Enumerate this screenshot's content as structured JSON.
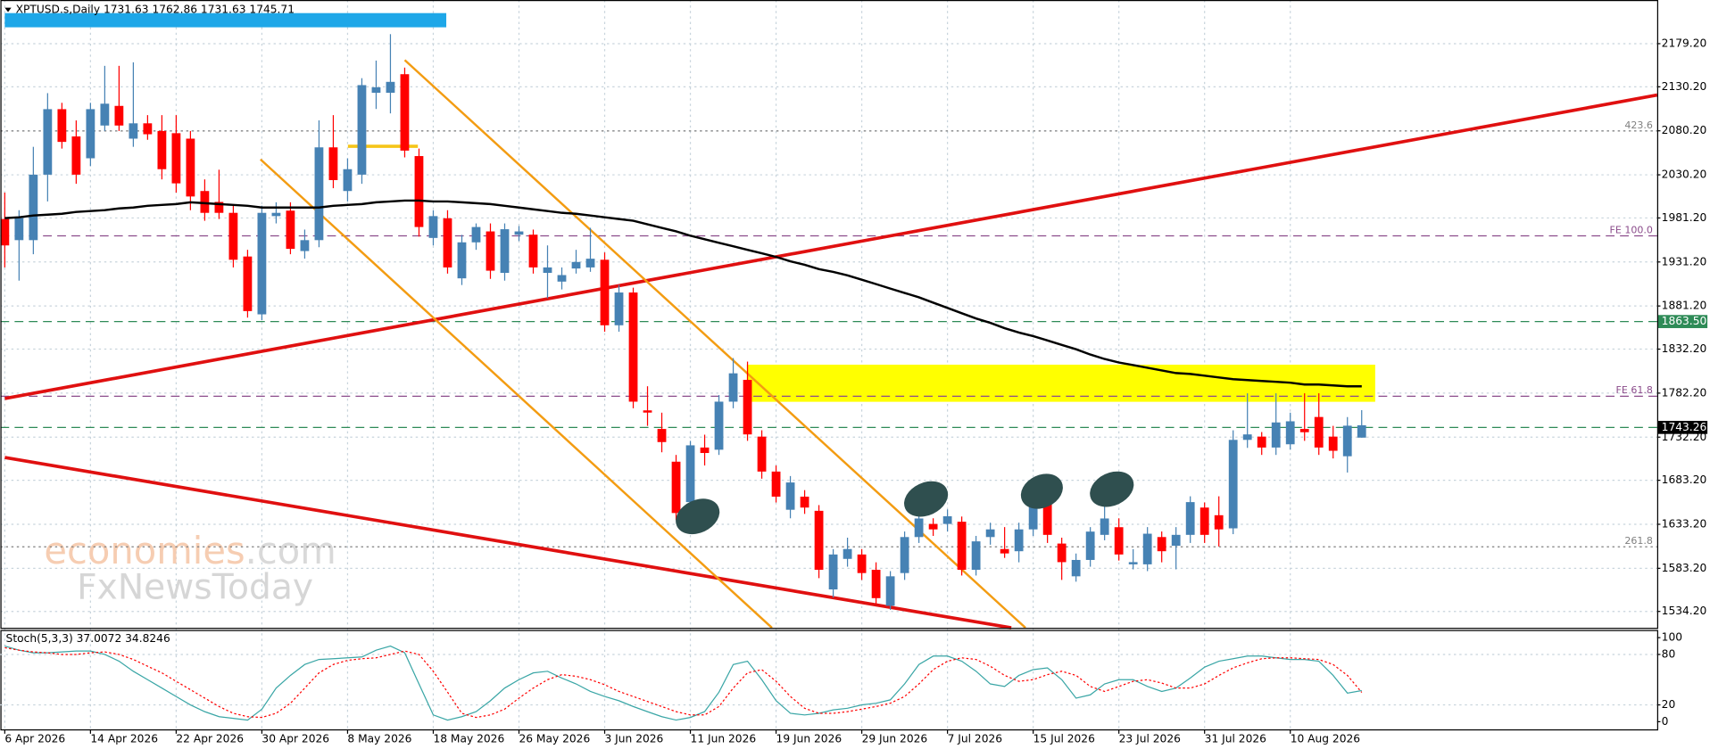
{
  "chart_data": {
    "type": "candlestick",
    "title": "XPTUSD.s,Daily  1731.63 1762.86 1731.63 1745.71",
    "categories": [
      "6 Apr 2026",
      null,
      null,
      null,
      null,
      null,
      "14 Apr 2026",
      null,
      null,
      null,
      null,
      null,
      "22 Apr 2026",
      null,
      null,
      null,
      null,
      null,
      "30 Apr 2026",
      null,
      null,
      null,
      null,
      null,
      "8 May 2026",
      null,
      null,
      null,
      null,
      null,
      "18 May 2026",
      null,
      null,
      null,
      null,
      null,
      "26 May 2026",
      null,
      null,
      null,
      null,
      null,
      "3 Jun 2026",
      null,
      null,
      null,
      null,
      null,
      "11 Jun 2026",
      null,
      null,
      null,
      null,
      null,
      "19 Jun 2026",
      null,
      null,
      null,
      null,
      null,
      "29 Jun 2026",
      null,
      null,
      null,
      null,
      null,
      "7 Jul 2026",
      null,
      null,
      null,
      null,
      null,
      "15 Jul 2026",
      null,
      null,
      null,
      null,
      null,
      "23 Jul 2026",
      null,
      null,
      null,
      null,
      null,
      "31 Jul 2026",
      null,
      null,
      null,
      null,
      null,
      "10 Aug 2026",
      null,
      null,
      null,
      null,
      null
    ],
    "open": [
      1980,
      1956,
      1956,
      2030.4,
      2104.8,
      2073.8,
      2049,
      2086.2,
      2108.5,
      2071.3,
      2088.7,
      2080,
      2077.5,
      2071.3,
      2011.8,
      1999.4,
      1987,
      1937.4,
      1871.7,
      1983.3,
      1989.5,
      1943.6,
      1956,
      2061.4,
      2011.8,
      2030.4,
      2123.4,
      2123.4,
      2144.5,
      2051.5,
      1958.5,
      1980.8,
      1912.6,
      1953.5,
      1965.9,
      1918.8,
      1962.2,
      1962.2,
      1918.8,
      1908.9,
      1923.8,
      1925,
      1933.7,
      1859.3,
      1896.5,
      1762.6,
      1741.5,
      1704.3,
      1658.4,
      1720.4,
      1717.9,
      1772.5,
      1797.3,
      1732.8,
      1693.1,
      1649.7,
      1664.6,
      1648.5,
      1559.2,
      1593.9,
      1598.9,
      1581.5,
      1540.6,
      1577.8,
      1618.7,
      1633.6,
      1633.6,
      1636.1,
      1581.5,
      1618.7,
      1605.1,
      1602.6,
      1627.4,
      1673.3,
      1611.3,
      1574.1,
      1592.7,
      1621.2,
      1629.9,
      1587.7,
      1587.7,
      1618.7,
      1608.8,
      1621.2,
      1652.2,
      1643.5,
      1628.6,
      1729.1,
      1732.8,
      1720.4,
      1724.1,
      1741.5,
      1755.1,
      1732.8,
      1710.5,
      1731.63
    ],
    "high": [
      2010,
      1990,
      2062,
      2123,
      2112,
      2092,
      2112,
      2154,
      2154,
      2158,
      2098,
      2098,
      2098,
      2080,
      2025,
      2036,
      1995,
      1945,
      1995,
      1999,
      1999,
      1968,
      2092,
      2098,
      2049,
      2140,
      2160,
      2190,
      2152,
      2060,
      1990,
      1990,
      1962,
      1975,
      1975,
      1975,
      1972,
      1968,
      1950,
      1925,
      1945,
      1970,
      1942,
      1905,
      1902,
      1790,
      1760,
      1712,
      1728,
      1735,
      1780,
      1822,
      1818,
      1740,
      1700,
      1688,
      1672,
      1655,
      1605,
      1618,
      1605,
      1590,
      1580,
      1625,
      1648,
      1640,
      1650,
      1642,
      1620,
      1635,
      1630,
      1635,
      1680,
      1680,
      1618,
      1600,
      1630,
      1672,
      1640,
      1605,
      1630,
      1625,
      1630,
      1665,
      1658,
      1665,
      1740,
      1782,
      1738,
      1782,
      1760,
      1782,
      1782,
      1745,
      1755,
      1762.86
    ],
    "low": [
      1925,
      1910,
      1940,
      2000,
      2060,
      2020,
      2040,
      2080,
      2080,
      2062,
      2070,
      2025,
      2010,
      1990,
      1978,
      1980,
      1925,
      1868,
      1865,
      1975,
      1940,
      1935,
      1948,
      2015,
      2000,
      2020,
      2105,
      2100,
      2050,
      1960,
      1950,
      1918,
      1905,
      1945,
      1912,
      1910,
      1955,
      1918,
      1890,
      1900,
      1918,
      1920,
      1852,
      1852,
      1765,
      1745,
      1715,
      1638,
      1650,
      1700,
      1712,
      1765,
      1728,
      1685,
      1658,
      1640,
      1645,
      1572,
      1550,
      1585,
      1570,
      1542,
      1536,
      1570,
      1612,
      1620,
      1625,
      1575,
      1575,
      1610,
      1595,
      1590,
      1620,
      1612,
      1570,
      1568,
      1585,
      1615,
      1592,
      1582,
      1580,
      1590,
      1582,
      1612,
      1612,
      1608,
      1622,
      1720,
      1712,
      1712,
      1718,
      1728,
      1712,
      1708,
      1692,
      1731.63
    ],
    "close": [
      1950,
      1981,
      2030.4,
      2104.8,
      2067.6,
      2030.4,
      2104.8,
      2111,
      2086.2,
      2088.7,
      2076.3,
      2036.6,
      2020.5,
      2005.6,
      1987,
      1987,
      1933.7,
      1875.4,
      1987,
      1987,
      1946.1,
      1956,
      2061.4,
      2024.2,
      2036.6,
      2132.1,
      2129.6,
      2135.8,
      2057.7,
      1970.9,
      1983.3,
      1925,
      1953.5,
      1970.9,
      1921.3,
      1968.4,
      1965.9,
      1925,
      1925,
      1916.3,
      1931.2,
      1934.9,
      1859.3,
      1896.5,
      1772.5,
      1760.1,
      1726.6,
      1646,
      1722.9,
      1714.2,
      1772.5,
      1804.7,
      1735.3,
      1693.1,
      1664.6,
      1680.7,
      1652.2,
      1581.5,
      1598.9,
      1605.1,
      1577.8,
      1549.3,
      1574.1,
      1618.7,
      1639.8,
      1627.4,
      1642.3,
      1581.5,
      1613.8,
      1627.4,
      1600.1,
      1627.4,
      1670.8,
      1621.2,
      1590.2,
      1592.7,
      1624.9,
      1639.8,
      1598.9,
      1590.2,
      1622.5,
      1602.6,
      1621.2,
      1658.4,
      1621.2,
      1627.4,
      1729.1,
      1735.3,
      1720.4,
      1748.9,
      1750.2,
      1737.8,
      1720.4,
      1716.7,
      1745.2,
      1745.71
    ],
    "up_color": "#4682b4",
    "down_color": "#ff0000",
    "ma": {
      "color": "#000000",
      "values": [
        1981,
        1982,
        1984,
        1985,
        1986,
        1988,
        1989,
        1990,
        1992,
        1993,
        1995,
        1996,
        1997,
        1999,
        1998,
        1997,
        1996,
        1995,
        1993,
        1993,
        1993,
        1993,
        1993,
        1995,
        1996,
        1997,
        1999,
        2000,
        2001,
        2001,
        2000,
        2000,
        1999,
        1998,
        1997,
        1995,
        1993,
        1991,
        1989,
        1987,
        1986,
        1984,
        1982,
        1980,
        1978,
        1974,
        1970,
        1966,
        1961,
        1957,
        1953,
        1949,
        1945,
        1941,
        1937,
        1932,
        1928,
        1923,
        1920,
        1916,
        1911,
        1906,
        1901,
        1896,
        1891,
        1885,
        1879,
        1873,
        1867,
        1862,
        1856,
        1851,
        1847,
        1842,
        1837,
        1832,
        1826,
        1821,
        1817,
        1814,
        1811,
        1808,
        1805,
        1804,
        1802,
        1800,
        1798,
        1797,
        1796,
        1795,
        1794,
        1792,
        1792,
        1791,
        1790,
        1790
      ]
    },
    "ylim": [
      1515.6,
      2228.8
    ],
    "yticks": [
      {
        "value": 2179.2,
        "label": "2179.20"
      },
      {
        "value": 2130.2,
        "label": "2130.20"
      },
      {
        "value": 2080.2,
        "label": "2080.20"
      },
      {
        "value": 2030.2,
        "label": "2030.20"
      },
      {
        "value": 1981.2,
        "label": "1981.20"
      },
      {
        "value": 1931.2,
        "label": "1931.20"
      },
      {
        "value": 1881.2,
        "label": "1881.20"
      },
      {
        "value": 1832.2,
        "label": "1832.20"
      },
      {
        "value": 1782.2,
        "label": "1782.20"
      },
      {
        "value": 1732.2,
        "label": "1732.20"
      },
      {
        "value": 1683.2,
        "label": "1683.20"
      },
      {
        "value": 1633.2,
        "label": "1633.20"
      },
      {
        "value": 1583.2,
        "label": "1583.20"
      },
      {
        "value": 1534.2,
        "label": "1534.20"
      }
    ],
    "grid": true,
    "levels": [
      {
        "value": 1863.5,
        "label": "1863.50",
        "color": "#2e8b57",
        "style": "dashed",
        "label_position": "axis"
      },
      {
        "value": 1743.26,
        "label": "1743.26",
        "color": "#2e8b57",
        "style": "dashed",
        "label_position": "axis",
        "label_fill": "#000000"
      },
      {
        "value": 1960.9,
        "label": "FE 100.0",
        "color": "#8b4c8b",
        "style": "dashed",
        "label_position": "inside"
      },
      {
        "value": 1778.7,
        "label": "FE 61.8",
        "color": "#8b4c8b",
        "style": "dashed",
        "label_position": "inside"
      },
      {
        "value": 2080,
        "label": "423.6",
        "color": "#7f7f7f",
        "style": "dotted",
        "label_position": "inside"
      },
      {
        "value": 1607.6,
        "label": "261.8",
        "color": "#7f7f7f",
        "style": "dotted",
        "label_position": "inside"
      }
    ],
    "stoch": {
      "title": "Stoch(5,3,3) 37.0072 34.8246",
      "ylim": [
        0,
        100
      ],
      "yticks": [
        100,
        80,
        20,
        0
      ],
      "levels": [
        80,
        20
      ],
      "series": [
        {
          "color": "#3aa6a6",
          "style": "solid",
          "values": [
            90,
            85,
            82,
            82,
            83,
            84,
            84,
            80,
            72,
            60,
            50,
            40,
            30,
            20,
            12,
            6,
            4,
            2,
            15,
            40,
            55,
            68,
            74,
            75,
            76,
            77,
            85,
            90,
            82,
            45,
            8,
            2,
            6,
            12,
            25,
            40,
            50,
            58,
            60,
            52,
            45,
            36,
            30,
            25,
            18,
            12,
            6,
            2,
            5,
            12,
            35,
            68,
            72,
            50,
            25,
            10,
            8,
            10,
            14,
            16,
            20,
            22,
            26,
            45,
            68,
            78,
            78,
            72,
            60,
            45,
            42,
            55,
            62,
            64,
            50,
            28,
            32,
            45,
            50,
            50,
            42,
            36,
            40,
            52,
            65,
            72,
            75,
            78,
            78,
            76,
            74,
            74,
            72,
            55,
            34,
            37.0072
          ]
        },
        {
          "color": "#ff0000",
          "style": "dotted",
          "values": [
            88,
            85,
            83,
            82,
            80,
            80,
            82,
            83,
            80,
            74,
            66,
            58,
            48,
            38,
            28,
            18,
            10,
            6,
            5,
            10,
            22,
            40,
            58,
            68,
            73,
            75,
            76,
            80,
            84,
            80,
            60,
            35,
            10,
            5,
            8,
            15,
            28,
            40,
            50,
            56,
            54,
            50,
            44,
            36,
            30,
            24,
            18,
            12,
            8,
            8,
            18,
            40,
            58,
            62,
            48,
            30,
            16,
            10,
            10,
            12,
            15,
            18,
            22,
            30,
            45,
            62,
            72,
            76,
            74,
            66,
            55,
            48,
            50,
            56,
            60,
            55,
            42,
            36,
            42,
            48,
            50,
            46,
            40,
            40,
            45,
            55,
            64,
            70,
            75,
            76,
            76,
            75,
            74,
            68,
            55,
            34.8246
          ]
        }
      ]
    }
  },
  "watermark": {
    "brand": "economies",
    "suffix": ".com",
    "sub": "FxNewsToday"
  }
}
